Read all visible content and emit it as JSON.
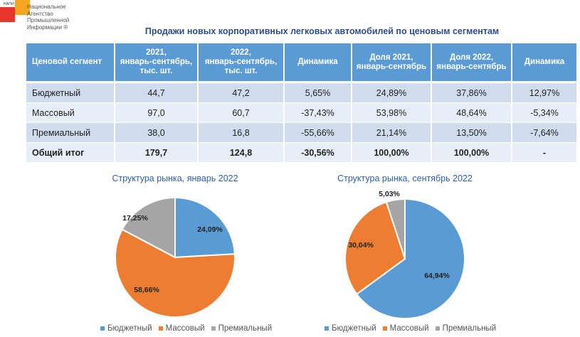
{
  "logo": {
    "abbr": "НАПИ",
    "lines": [
      "Национальное",
      "Агентство",
      "Промышленной",
      "Информации ®"
    ]
  },
  "title": "Продажи новых  корпоративных легковых автомобилей по ценовым сегментам",
  "table": {
    "headers": [
      [
        "Ценовой сегмент"
      ],
      [
        "2021,",
        "январь-сентябрь,",
        "тыс. шт."
      ],
      [
        "2022,",
        "январь-сентябрь,",
        "тыс. шт."
      ],
      [
        "Динамика"
      ],
      [
        "Доля 2021,",
        "январь-сентябрь"
      ],
      [
        "Доля 2022,",
        "январь-сентябрь"
      ],
      [
        "Динамика"
      ]
    ],
    "rows": [
      [
        "Бюджетный",
        "44,7",
        "47,2",
        "5,65%",
        "24,89%",
        "37,86%",
        "12,97%"
      ],
      [
        "Массовый",
        "97,0",
        "60,7",
        "-37,43%",
        "53,98%",
        "48,64%",
        "-5,34%"
      ],
      [
        "Премиальный",
        "38,0",
        "16,8",
        "-55,66%",
        "21,14%",
        "13,50%",
        "-7,64%"
      ],
      [
        "Общий итог",
        "179,7",
        "124,8",
        "-30,56%",
        "100,00%",
        "100,00%",
        "-"
      ]
    ]
  },
  "colors": {
    "budget": "#5b9bd5",
    "mass": "#ed7d31",
    "premium": "#a5a5a5",
    "header": "#5b9bd5",
    "title": "#2f4e8a"
  },
  "chart_data": [
    {
      "type": "pie",
      "title": "Структура рынка, январь 2022",
      "categories": [
        "Бюджетный",
        "Массовый",
        "Премиальный"
      ],
      "values": [
        24.09,
        58.66,
        17.25
      ],
      "labels": [
        "24,09%",
        "58,66%",
        "17,25%"
      ],
      "legend": "bottom"
    },
    {
      "type": "pie",
      "title": "Структура рынка, сентябрь 2022",
      "categories": [
        "Бюджетный",
        "Массовый",
        "Премиальный"
      ],
      "values": [
        64.94,
        30.04,
        5.03
      ],
      "labels": [
        "64,94%",
        "30,04%",
        "5,03%"
      ],
      "legend": "bottom"
    }
  ]
}
